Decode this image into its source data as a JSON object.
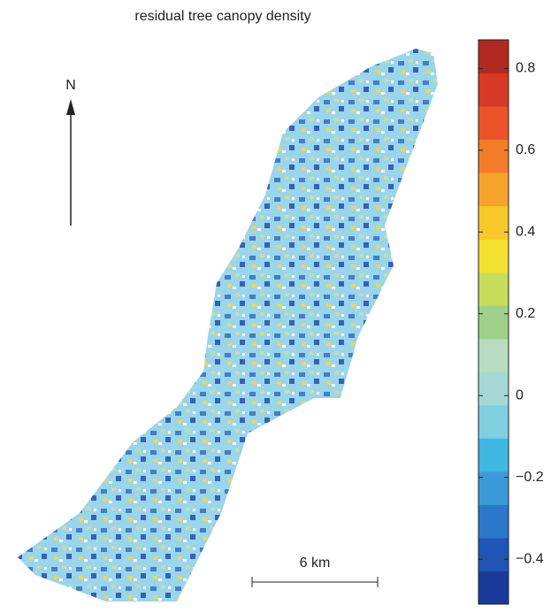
{
  "chart_data": {
    "type": "colormap-map",
    "title": "residual tree canopy density",
    "north_label": "N",
    "scale_label": "6 km",
    "colorbar_lim": [
      -0.51,
      0.87
    ],
    "colorbar_ticks": [
      {
        "value": -0.4,
        "label": "−0.4"
      },
      {
        "value": -0.2,
        "label": "−0.2"
      },
      0,
      0.2,
      0.4,
      0.6,
      0.8
    ],
    "colormap": [
      "#1a3a9a",
      "#1f56b5",
      "#2a78cc",
      "#3a9ad8",
      "#3fb8e3",
      "#7fcfe0",
      "#a5d8d5",
      "#b7dcc0",
      "#9ed08a",
      "#c8dc5c",
      "#f2e12e",
      "#f9c82a",
      "#f6a32a",
      "#f27c2a",
      "#ea5428",
      "#d63a26",
      "#b2291f"
    ]
  }
}
